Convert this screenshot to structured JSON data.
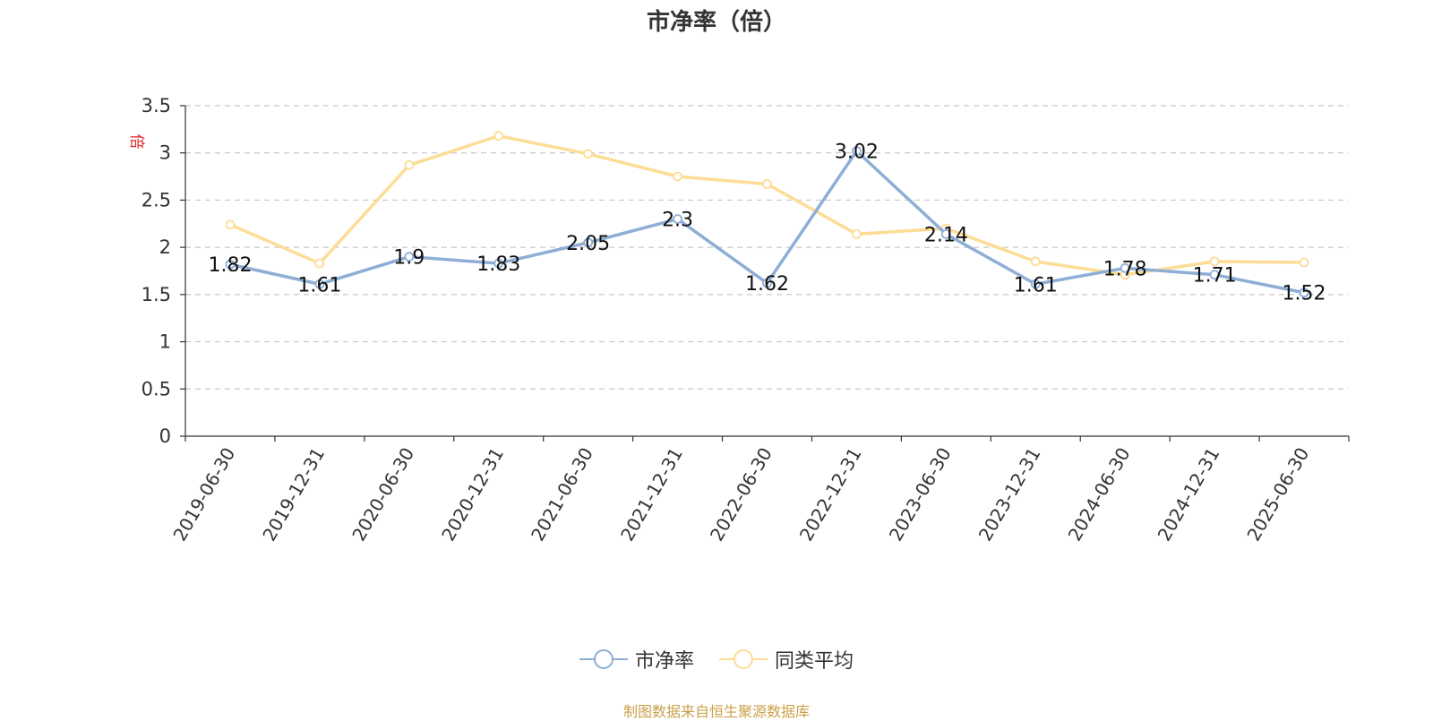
{
  "chart_data": {
    "type": "line",
    "title": "市净率（倍）",
    "ylabel": "倍",
    "categories": [
      "2019-06-30",
      "2019-12-31",
      "2020-06-30",
      "2020-12-31",
      "2021-06-30",
      "2021-12-31",
      "2022-06-30",
      "2022-12-31",
      "2023-06-30",
      "2023-12-31",
      "2024-06-30",
      "2024-12-31",
      "2025-06-30"
    ],
    "ylim": [
      0,
      3.5
    ],
    "yticks": [
      "0",
      "0.5",
      "1",
      "1.5",
      "2",
      "2.5",
      "3",
      "3.5"
    ],
    "grid": true,
    "legend_position": "bottom",
    "series": [
      {
        "name": "市净率",
        "color": "#8eaed6",
        "values": [
          1.82,
          1.61,
          1.9,
          1.83,
          2.05,
          2.3,
          1.62,
          3.02,
          2.14,
          1.61,
          1.78,
          1.71,
          1.52
        ],
        "labels": [
          "1.82",
          "1.61",
          "1.9",
          "1.83",
          "2.05",
          "2.3",
          "1.62",
          "3.02",
          "2.14",
          "1.61",
          "1.78",
          "1.71",
          "1.52"
        ]
      },
      {
        "name": "同类平均",
        "color": "#fddc96",
        "values": [
          2.24,
          1.83,
          2.87,
          3.18,
          2.99,
          2.75,
          2.67,
          2.14,
          2.2,
          1.85,
          1.71,
          1.85,
          1.84
        ]
      }
    ]
  },
  "source": "制图数据来自恒生聚源数据库"
}
